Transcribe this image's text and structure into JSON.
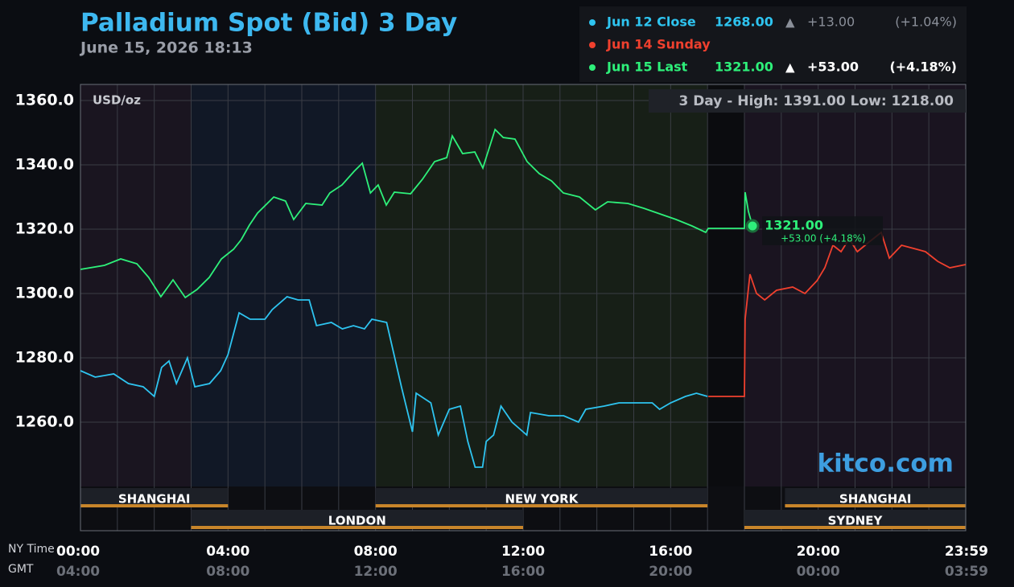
{
  "chart_data": {
    "type": "line",
    "title": "Palladium Spot (Bid) 3 Day",
    "subtitle": "June 15, 2026 18:13",
    "unit_label": "USD/oz",
    "range_note": "3 Day - High: 1391.00  Low: 1218.00",
    "watermark": "kitco.com",
    "x_row_labels": [
      "NY Time",
      "GMT"
    ],
    "xlim": [
      0,
      24
    ],
    "ylim": [
      1240,
      1365
    ],
    "yticks": [
      {
        "value": 1260,
        "label": "1260.0"
      },
      {
        "value": 1280,
        "label": "1280.0"
      },
      {
        "value": 1300,
        "label": "1300.0"
      },
      {
        "value": 1320,
        "label": "1320.0"
      },
      {
        "value": 1340,
        "label": "1340.0"
      },
      {
        "value": 1360,
        "label": "1360.0"
      }
    ],
    "xticks": [
      {
        "value": 0,
        "label": "00:00"
      },
      {
        "value": 4,
        "label": "04:00"
      },
      {
        "value": 8,
        "label": "08:00"
      },
      {
        "value": 12,
        "label": "12:00"
      },
      {
        "value": 16,
        "label": "16:00"
      },
      {
        "value": 20,
        "label": "20:00"
      },
      {
        "value": 24,
        "label": "23:59"
      }
    ],
    "gmt_labels": [
      "04:00",
      "08:00",
      "12:00",
      "16:00",
      "20:00",
      "00:00",
      "03:59"
    ],
    "grid": true,
    "xgrid_step": 1,
    "shading": [
      {
        "start": 0,
        "end": 3,
        "color": "#1a1520"
      },
      {
        "start": 3,
        "end": 8,
        "color": "#111826"
      },
      {
        "start": 8,
        "end": 17,
        "color": "#171f17"
      },
      {
        "start": 17,
        "end": 18,
        "color": "#0b0c0f"
      },
      {
        "start": 18,
        "end": 24,
        "color": "#1a1420"
      }
    ],
    "sessions": [
      {
        "name": "SHANGHAI",
        "start": 0,
        "end": 4,
        "row": 0
      },
      {
        "name": "NEW YORK",
        "start": 8,
        "end": 17,
        "row": 0
      },
      {
        "name": "SHANGHAI",
        "start": 19.1,
        "end": 24,
        "row": 0
      },
      {
        "name": "LONDON",
        "start": 3,
        "end": 12,
        "row": 1
      },
      {
        "name": "SYDNEY",
        "start": 18,
        "end": 24,
        "row": 1
      }
    ],
    "series": [
      {
        "name": "Jun 12 Close",
        "color": "#2ec4f0",
        "price": "1268.00",
        "arrow": "▲",
        "arrow_color": "#8a8f99",
        "change": "+13.00",
        "change_pct": "(+1.04%)",
        "muted": true,
        "x": [
          0,
          0.4,
          0.9,
          1.3,
          1.7,
          2.0,
          2.2,
          2.4,
          2.6,
          2.9,
          3.1,
          3.5,
          3.8,
          4.0,
          4.3,
          4.6,
          5.0,
          5.2,
          5.6,
          5.9,
          6.2,
          6.4,
          6.8,
          7.1,
          7.4,
          7.7,
          7.9,
          8.3,
          8.5,
          8.7,
          9.0,
          9.1,
          9.5,
          9.7,
          10.0,
          10.3,
          10.5,
          10.7,
          10.9,
          11.0,
          11.2,
          11.4,
          11.7,
          11.9,
          12.1,
          12.2,
          12.7,
          13.1,
          13.5,
          13.7,
          14.2,
          14.6,
          15.1,
          15.5,
          15.7,
          16.0,
          16.4,
          16.7,
          17.0
        ],
        "values": [
          1276,
          1274,
          1275,
          1272,
          1271,
          1268,
          1277,
          1279,
          1272,
          1280,
          1271,
          1272,
          1276,
          1281,
          1294,
          1292,
          1292,
          1295,
          1299,
          1298,
          1298,
          1290,
          1291,
          1289,
          1290,
          1289,
          1292,
          1291,
          1281,
          1271,
          1257,
          1269,
          1266,
          1256,
          1264,
          1265,
          1254,
          1246,
          1246,
          1254,
          1256,
          1265,
          1260,
          1258,
          1256,
          1263,
          1262,
          1262,
          1260,
          1264,
          1265,
          1266,
          1266,
          1266,
          1264,
          1266,
          1268,
          1269,
          1268
        ]
      },
      {
        "name": "Jun 14 Sunday",
        "color": "#f0402e",
        "x": [
          17.02,
          18.0,
          18.02,
          18.15,
          18.33,
          18.55,
          18.87,
          19.31,
          19.64,
          19.97,
          20.18,
          20.4,
          20.62,
          20.84,
          21.06,
          21.38,
          21.71,
          21.93,
          22.26,
          22.59,
          22.91,
          23.24,
          23.57,
          24
        ],
        "values": [
          1268,
          1268,
          1292,
          1306,
          1300,
          1298,
          1301,
          1302,
          1300,
          1304,
          1308,
          1315,
          1313,
          1317,
          1313,
          1316,
          1319,
          1311,
          1315,
          1314,
          1313,
          1310,
          1308,
          1309
        ]
      },
      {
        "name": "Jun 15 Last",
        "color": "#2ef07a",
        "price": "1321.00",
        "arrow": "▲",
        "arrow_color": "#ffffff",
        "change": "+53.00",
        "change_pct": "(+4.18%)",
        "x": [
          0,
          0.65,
          1.09,
          1.53,
          1.85,
          2.18,
          2.51,
          2.84,
          3.16,
          3.49,
          3.82,
          4.15,
          4.36,
          4.58,
          4.8,
          5.24,
          5.56,
          5.78,
          6.11,
          6.55,
          6.76,
          7.09,
          7.42,
          7.64,
          7.86,
          8.07,
          8.29,
          8.51,
          8.95,
          9.27,
          9.6,
          9.93,
          10.08,
          10.36,
          10.69,
          10.91,
          11.24,
          11.46,
          11.78,
          12.11,
          12.44,
          12.77,
          13.09,
          13.53,
          13.96,
          14.29,
          14.84,
          15.27,
          15.71,
          16.15,
          16.58,
          16.95,
          17.02,
          18.0,
          18.02,
          18.11,
          18.22
        ],
        "values": [
          1307.5,
          1308.75,
          1310.75,
          1309.25,
          1305,
          1299,
          1304.25,
          1298.75,
          1301.25,
          1305,
          1310.75,
          1313.75,
          1316.75,
          1321.25,
          1325,
          1330,
          1328.75,
          1323,
          1328,
          1327.5,
          1331.25,
          1333.75,
          1338,
          1340.5,
          1331.25,
          1333.75,
          1327.5,
          1331.5,
          1331,
          1335.5,
          1341,
          1342.25,
          1349,
          1343.5,
          1344,
          1339,
          1351,
          1348.5,
          1348,
          1341,
          1337.25,
          1335,
          1331.25,
          1330,
          1326,
          1328.5,
          1328,
          1326.5,
          1324.75,
          1323,
          1321,
          1319,
          1320.25,
          1320.25,
          1331.5,
          1325.5,
          1321
        ]
      }
    ],
    "last_point": {
      "label": "1321.00",
      "change": "+53.00 (+4.18%)"
    }
  }
}
